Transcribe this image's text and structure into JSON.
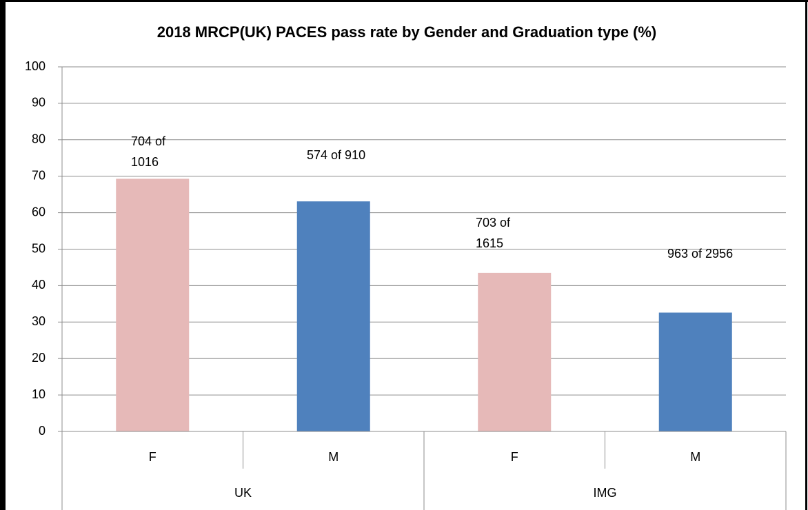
{
  "chart_data": {
    "type": "bar",
    "title": "2018 MRCP(UK) PACES pass rate by Gender and Graduation type  (%)",
    "categories": [
      "F",
      "M",
      "F",
      "M"
    ],
    "groups": [
      "UK",
      "IMG"
    ],
    "values": [
      69.3,
      63.1,
      43.5,
      32.6
    ],
    "colors": [
      "#e6b9b8",
      "#4f81bd",
      "#e6b9b8",
      "#4f81bd"
    ],
    "annotations": [
      "704 of 1016",
      "574 of 910",
      "703 of 1615",
      "963 of 2956"
    ],
    "ylim": [
      0,
      100
    ],
    "yticks": [
      0,
      10,
      20,
      30,
      40,
      50,
      60,
      70,
      80,
      90,
      100
    ],
    "grid": true
  }
}
